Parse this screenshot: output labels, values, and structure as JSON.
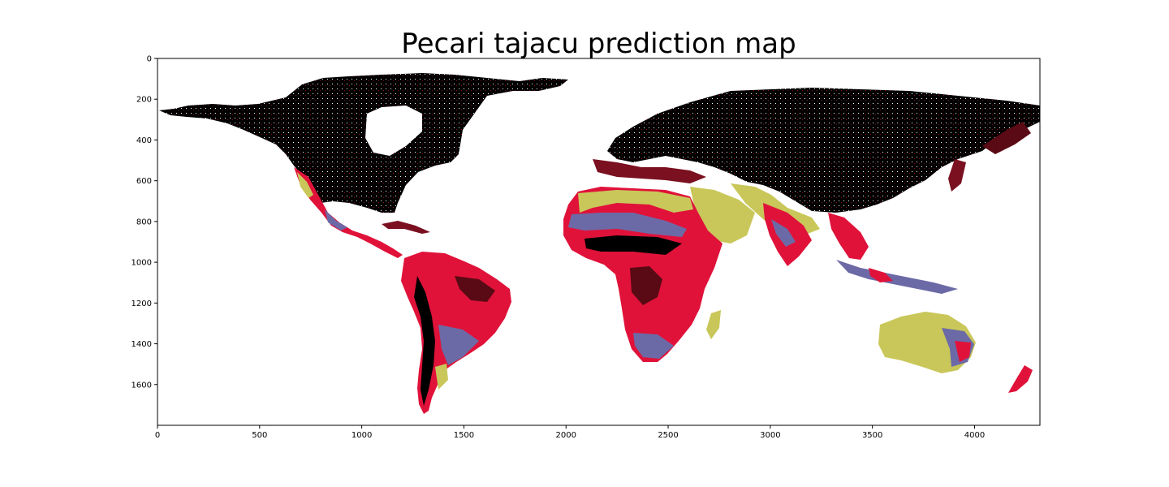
{
  "title": "Pecari tajacu prediction map",
  "chart_data": {
    "type": "heatmap",
    "title": "Pecari tajacu prediction map",
    "xlim": [
      0,
      4320
    ],
    "ylim": [
      1800,
      0
    ],
    "x_ticks": [
      0,
      500,
      1000,
      1500,
      2000,
      2500,
      3000,
      3500,
      4000
    ],
    "y_ticks": [
      0,
      200,
      400,
      600,
      800,
      1000,
      1200,
      1400,
      1600
    ],
    "grid": false,
    "legend": "none",
    "colors": {
      "background": "#ffffff",
      "very_low": "#000000",
      "low": "#5a0a14",
      "medium": "#e0123a",
      "medium_high": "#6c6aa6",
      "high": "#c9c75a"
    }
  }
}
